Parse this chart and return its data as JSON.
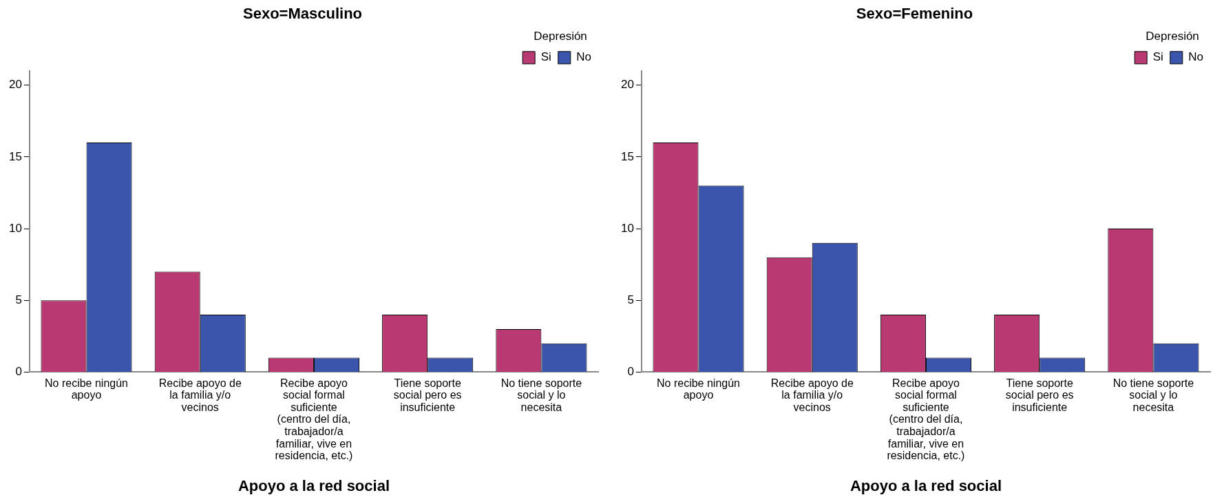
{
  "chart_data": [
    {
      "type": "bar",
      "title": "Sexo=Masculino",
      "xlabel": "Apoyo a la red social",
      "legend_title": "Depresión",
      "legend": "top right",
      "grid": false,
      "categories": [
        "No recibe ningún apoyo",
        "Recibe apoyo de la familia y/o vecinos",
        "Recibe apoyo social formal suficiente (centro del día, trabajador/a familiar, vive en residencia, etc.)",
        "Tiene soporte social pero es insuficiente",
        "No tiene soporte social y lo necesita"
      ],
      "series": [
        {
          "name": "Si",
          "color": "#b93a73",
          "values": [
            5,
            7,
            1,
            4,
            3
          ]
        },
        {
          "name": "No",
          "color": "#3a55ab",
          "values": [
            16,
            4,
            1,
            1,
            2
          ]
        }
      ],
      "ylim": [
        0,
        21
      ],
      "yticks": [
        0,
        5,
        10,
        15,
        20
      ]
    },
    {
      "type": "bar",
      "title": "Sexo=Femenino",
      "xlabel": "Apoyo a la red social",
      "legend_title": "Depresión",
      "legend": "top right",
      "grid": false,
      "categories": [
        "No recibe ningún apoyo",
        "Recibe apoyo de la familia y/o vecinos",
        "Recibe apoyo social formal suficiente (centro del día, trabajador/a familiar, vive en residencia, etc.)",
        "Tiene soporte social pero es insuficiente",
        "No tiene soporte social y lo necesita"
      ],
      "series": [
        {
          "name": "Si",
          "color": "#b93a73",
          "values": [
            16,
            8,
            4,
            4,
            10
          ]
        },
        {
          "name": "No",
          "color": "#3a55ab",
          "values": [
            13,
            9,
            1,
            1,
            2
          ]
        }
      ],
      "ylim": [
        0,
        21
      ],
      "yticks": [
        0,
        5,
        10,
        15,
        20
      ]
    }
  ]
}
